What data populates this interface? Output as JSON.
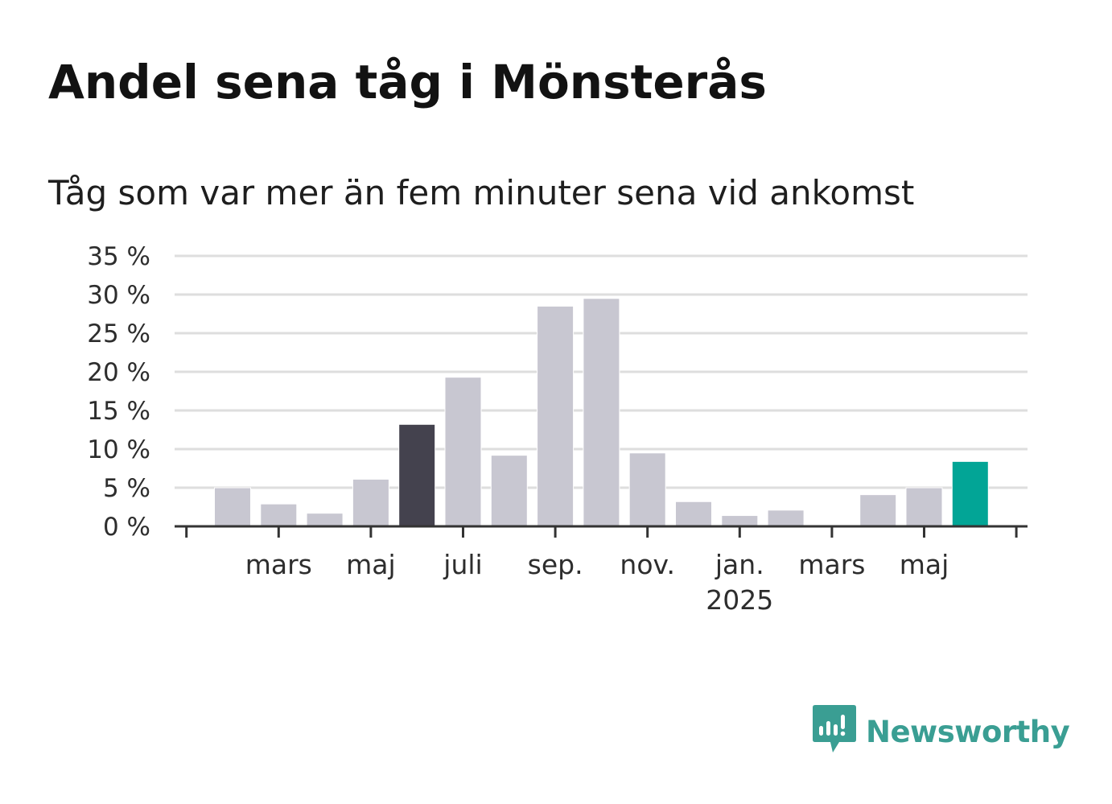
{
  "title": "Andel sena tåg i Mönsterås",
  "subtitle": "Tåg som var mer än fem minuter sena vid ankomst",
  "brand": {
    "name": "Newsworthy",
    "color": "#3a9e93",
    "icon": "newsworthy-logo-icon"
  },
  "colors": {
    "bar_default": "#c8c7d1",
    "bar_highlight": "#44424e",
    "bar_latest": "#02a596",
    "gridline": "#dedede",
    "axis": "#333333"
  },
  "chart_data": {
    "type": "bar",
    "title": "Andel sena tåg i Mönsterås",
    "subtitle": "Tåg som var mer än fem minuter sena vid ankomst",
    "ylabel": "",
    "xlabel": "",
    "ylim": [
      0,
      35
    ],
    "yticks": [
      {
        "value": 0,
        "label": "0 %"
      },
      {
        "value": 5,
        "label": "5 %"
      },
      {
        "value": 10,
        "label": "10 %"
      },
      {
        "value": 15,
        "label": "15 %"
      },
      {
        "value": 20,
        "label": "20 %"
      },
      {
        "value": 25,
        "label": "25 %"
      },
      {
        "value": 30,
        "label": "30 %"
      },
      {
        "value": 35,
        "label": "35 %"
      }
    ],
    "grid": true,
    "months": [
      "2024-02",
      "2024-03",
      "2024-04",
      "2024-05",
      "2024-06",
      "2024-07",
      "2024-08",
      "2024-09",
      "2024-10",
      "2024-11",
      "2024-12",
      "2025-01",
      "2025-02",
      "2025-03",
      "2025-04",
      "2025-05",
      "2025-06"
    ],
    "values": [
      5.0,
      2.9,
      1.7,
      6.1,
      13.2,
      19.3,
      9.2,
      28.5,
      29.5,
      9.5,
      3.2,
      1.4,
      2.1,
      null,
      4.1,
      5.0,
      8.4
    ],
    "highlight_month": "2024-06",
    "latest_month": "2025-06",
    "xticks": [
      {
        "month": "2024-03",
        "label": "mars"
      },
      {
        "month": "2024-05",
        "label": "maj"
      },
      {
        "month": "2024-07",
        "label": "juli"
      },
      {
        "month": "2024-09",
        "label": "sep."
      },
      {
        "month": "2024-11",
        "label": "nov."
      },
      {
        "month": "2025-01",
        "label": "jan.",
        "sublabel": "2025"
      },
      {
        "month": "2025-03",
        "label": "mars"
      },
      {
        "month": "2025-05",
        "label": "maj"
      }
    ]
  }
}
